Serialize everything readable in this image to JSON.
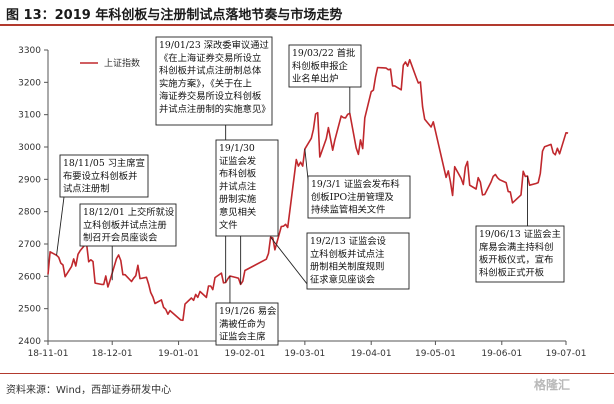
{
  "figure_title": "图 13：2019 年科创板与注册制试点落地节奏与市场走势",
  "source": "资料来源：Wind，西部证券研发中心",
  "watermark": "格隆汇",
  "colors": {
    "line": "#c0282d",
    "accent": "#b23a2e",
    "box_border": "#222222"
  },
  "chart_data": {
    "type": "line",
    "title": "",
    "xlabel": "",
    "ylabel": "",
    "ylim": [
      2400,
      3300
    ],
    "yticks": [
      2400,
      2500,
      2600,
      2700,
      2800,
      2900,
      3000,
      3100,
      3200,
      3300
    ],
    "xticks": [
      "18-11-01",
      "18-12-01",
      "19-01-01",
      "19-02-01",
      "19-03-01",
      "19-04-01",
      "19-05-01",
      "19-06-01",
      "19-07-01"
    ],
    "xlim": [
      "2018-11-01",
      "2019-07-01"
    ],
    "legend": {
      "entries": [
        "上证指数"
      ],
      "position": "top-left"
    },
    "grid": false,
    "series": [
      {
        "name": "上证指数",
        "points": [
          [
            "2018-11-01",
            2606
          ],
          [
            "2018-11-02",
            2676
          ],
          [
            "2018-11-05",
            2665
          ],
          [
            "2018-11-06",
            2659
          ],
          [
            "2018-11-07",
            2641
          ],
          [
            "2018-11-08",
            2635
          ],
          [
            "2018-11-09",
            2599
          ],
          [
            "2018-11-12",
            2630
          ],
          [
            "2018-11-13",
            2654
          ],
          [
            "2018-11-14",
            2632
          ],
          [
            "2018-11-15",
            2668
          ],
          [
            "2018-11-16",
            2679
          ],
          [
            "2018-11-19",
            2703
          ],
          [
            "2018-11-20",
            2645
          ],
          [
            "2018-11-21",
            2651
          ],
          [
            "2018-11-22",
            2646
          ],
          [
            "2018-11-23",
            2579
          ],
          [
            "2018-11-26",
            2575
          ],
          [
            "2018-11-27",
            2575
          ],
          [
            "2018-11-28",
            2601
          ],
          [
            "2018-11-29",
            2567
          ],
          [
            "2018-11-30",
            2588
          ],
          [
            "2018-12-03",
            2655
          ],
          [
            "2018-12-04",
            2666
          ],
          [
            "2018-12-05",
            2649
          ],
          [
            "2018-12-06",
            2605
          ],
          [
            "2018-12-07",
            2605
          ],
          [
            "2018-12-10",
            2584
          ],
          [
            "2018-12-11",
            2594
          ],
          [
            "2018-12-12",
            2602
          ],
          [
            "2018-12-13",
            2634
          ],
          [
            "2018-12-14",
            2593
          ],
          [
            "2018-12-17",
            2597
          ],
          [
            "2018-12-18",
            2576
          ],
          [
            "2018-12-19",
            2550
          ],
          [
            "2018-12-20",
            2536
          ],
          [
            "2018-12-21",
            2516
          ],
          [
            "2018-12-24",
            2527
          ],
          [
            "2018-12-25",
            2504
          ],
          [
            "2018-12-26",
            2498
          ],
          [
            "2018-12-27",
            2483
          ],
          [
            "2018-12-28",
            2494
          ],
          [
            "2019-01-02",
            2465
          ],
          [
            "2019-01-03",
            2464
          ],
          [
            "2019-01-04",
            2514
          ],
          [
            "2019-01-07",
            2533
          ],
          [
            "2019-01-08",
            2526
          ],
          [
            "2019-01-09",
            2544
          ],
          [
            "2019-01-10",
            2535
          ],
          [
            "2019-01-11",
            2553
          ],
          [
            "2019-01-14",
            2535
          ],
          [
            "2019-01-15",
            2570
          ],
          [
            "2019-01-16",
            2570
          ],
          [
            "2019-01-17",
            2559
          ],
          [
            "2019-01-18",
            2596
          ],
          [
            "2019-01-21",
            2610
          ],
          [
            "2019-01-22",
            2580
          ],
          [
            "2019-01-23",
            2581
          ],
          [
            "2019-01-24",
            2592
          ],
          [
            "2019-01-25",
            2601
          ],
          [
            "2019-01-28",
            2596
          ],
          [
            "2019-01-29",
            2594
          ],
          [
            "2019-01-30",
            2575
          ],
          [
            "2019-01-31",
            2585
          ],
          [
            "2019-02-01",
            2618
          ],
          [
            "2019-02-11",
            2653
          ],
          [
            "2019-02-12",
            2671
          ],
          [
            "2019-02-13",
            2721
          ],
          [
            "2019-02-14",
            2719
          ],
          [
            "2019-02-15",
            2682
          ],
          [
            "2019-02-18",
            2754
          ],
          [
            "2019-02-19",
            2755
          ],
          [
            "2019-02-20",
            2761
          ],
          [
            "2019-02-21",
            2751
          ],
          [
            "2019-02-22",
            2804
          ],
          [
            "2019-02-25",
            2961
          ],
          [
            "2019-02-26",
            2941
          ],
          [
            "2019-02-27",
            2953
          ],
          [
            "2019-02-28",
            2941
          ],
          [
            "2019-03-01",
            2994
          ],
          [
            "2019-03-04",
            3027
          ],
          [
            "2019-03-05",
            3054
          ],
          [
            "2019-03-06",
            3102
          ],
          [
            "2019-03-07",
            3106
          ],
          [
            "2019-03-08",
            2969
          ],
          [
            "2019-03-11",
            3026
          ],
          [
            "2019-03-12",
            3060
          ],
          [
            "2019-03-13",
            3026
          ],
          [
            "2019-03-14",
            2990
          ],
          [
            "2019-03-15",
            3021
          ],
          [
            "2019-03-18",
            3096
          ],
          [
            "2019-03-19",
            3091
          ],
          [
            "2019-03-20",
            3090
          ],
          [
            "2019-03-21",
            3101
          ],
          [
            "2019-03-22",
            3104
          ],
          [
            "2019-03-25",
            2997
          ],
          [
            "2019-03-26",
            2977
          ],
          [
            "2019-03-27",
            3022
          ],
          [
            "2019-03-28",
            2995
          ],
          [
            "2019-03-29",
            3090
          ],
          [
            "2019-04-01",
            3171
          ],
          [
            "2019-04-02",
            3176
          ],
          [
            "2019-04-03",
            3216
          ],
          [
            "2019-04-04",
            3246
          ],
          [
            "2019-04-08",
            3244
          ],
          [
            "2019-04-09",
            3239
          ],
          [
            "2019-04-10",
            3241
          ],
          [
            "2019-04-11",
            3189
          ],
          [
            "2019-04-12",
            3189
          ],
          [
            "2019-04-15",
            3177
          ],
          [
            "2019-04-16",
            3253
          ],
          [
            "2019-04-17",
            3263
          ],
          [
            "2019-04-18",
            3250
          ],
          [
            "2019-04-19",
            3270
          ],
          [
            "2019-04-22",
            3215
          ],
          [
            "2019-04-23",
            3198
          ],
          [
            "2019-04-24",
            3201
          ],
          [
            "2019-04-25",
            3124
          ],
          [
            "2019-04-26",
            3086
          ],
          [
            "2019-04-29",
            3062
          ],
          [
            "2019-04-30",
            3078
          ],
          [
            "2019-05-06",
            2906
          ],
          [
            "2019-05-07",
            2926
          ],
          [
            "2019-05-08",
            2893
          ],
          [
            "2019-05-09",
            2850
          ],
          [
            "2019-05-10",
            2939
          ],
          [
            "2019-05-13",
            2903
          ],
          [
            "2019-05-14",
            2884
          ],
          [
            "2019-05-15",
            2938
          ],
          [
            "2019-05-16",
            2955
          ],
          [
            "2019-05-17",
            2882
          ],
          [
            "2019-05-20",
            2870
          ],
          [
            "2019-05-21",
            2905
          ],
          [
            "2019-05-22",
            2891
          ],
          [
            "2019-05-23",
            2852
          ],
          [
            "2019-05-24",
            2853
          ],
          [
            "2019-05-27",
            2892
          ],
          [
            "2019-05-28",
            2909
          ],
          [
            "2019-05-29",
            2915
          ],
          [
            "2019-05-30",
            2905
          ],
          [
            "2019-05-31",
            2899
          ],
          [
            "2019-06-03",
            2890
          ],
          [
            "2019-06-04",
            2862
          ],
          [
            "2019-06-05",
            2861
          ],
          [
            "2019-06-06",
            2827
          ],
          [
            "2019-06-10",
            2852
          ],
          [
            "2019-06-11",
            2925
          ],
          [
            "2019-06-12",
            2909
          ],
          [
            "2019-06-13",
            2910
          ],
          [
            "2019-06-14",
            2882
          ],
          [
            "2019-06-17",
            2887
          ],
          [
            "2019-06-18",
            2890
          ],
          [
            "2019-06-19",
            2918
          ],
          [
            "2019-06-20",
            2987
          ],
          [
            "2019-06-21",
            3001
          ],
          [
            "2019-06-24",
            3008
          ],
          [
            "2019-06-25",
            2982
          ],
          [
            "2019-06-26",
            2976
          ],
          [
            "2019-06-27",
            2996
          ],
          [
            "2019-06-28",
            2979
          ],
          [
            "2019-07-01",
            3044
          ],
          [
            "2019-07-02",
            3043
          ]
        ]
      }
    ],
    "annotations": [
      {
        "lines": [
          "18/11/05 习主席宣",
          "布要设立科创板并",
          "试点注册制"
        ],
        "date": "2018-11-05",
        "value": 2665
      },
      {
        "lines": [
          "18/12/01 上交所就设",
          "立科创板并试点注册",
          "制召开会员座谈会"
        ],
        "date": "2018-12-01",
        "value": 2588
      },
      {
        "lines": [
          "19/01/23 深改委审议通过",
          "《在上海证券交易所设立",
          "科创板并试点注册制总体",
          "实施方案》，《关于在上",
          "海证券交易所设立科创板",
          "并试点注册制的实施意见》"
        ],
        "date": "2019-01-23",
        "value": 2581
      },
      {
        "lines": [
          "19/1/30",
          "证监会发",
          "布科创板",
          "并试点注",
          "册制实施",
          "意见相关",
          "文件"
        ],
        "date": "2019-01-30",
        "value": 2575
      },
      {
        "lines": [
          "19/1/26 易会",
          "满被任命为",
          "证监会主席"
        ],
        "date": "2019-01-25",
        "value": 2601
      },
      {
        "lines": [
          "19/03/22 首批",
          "科创板申报企",
          "业名单出炉"
        ],
        "date": "2019-03-22",
        "value": 3104
      },
      {
        "lines": [
          "19/3/1 证监会发布科",
          "创板IPO注册管理及",
          "持续监管相关文件"
        ],
        "date": "2019-03-01",
        "value": 2994
      },
      {
        "lines": [
          "19/2/13 证监会设",
          "立科创板并试点注",
          "册制相关制度规则",
          "征求意见座谈会"
        ],
        "date": "2019-02-13",
        "value": 2721
      },
      {
        "lines": [
          "19/06/13 证监会主",
          "席易会满主持科创",
          "板开板仪式，宣布",
          "科创板正式开板"
        ],
        "date": "2019-06-13",
        "value": 2910
      }
    ]
  }
}
